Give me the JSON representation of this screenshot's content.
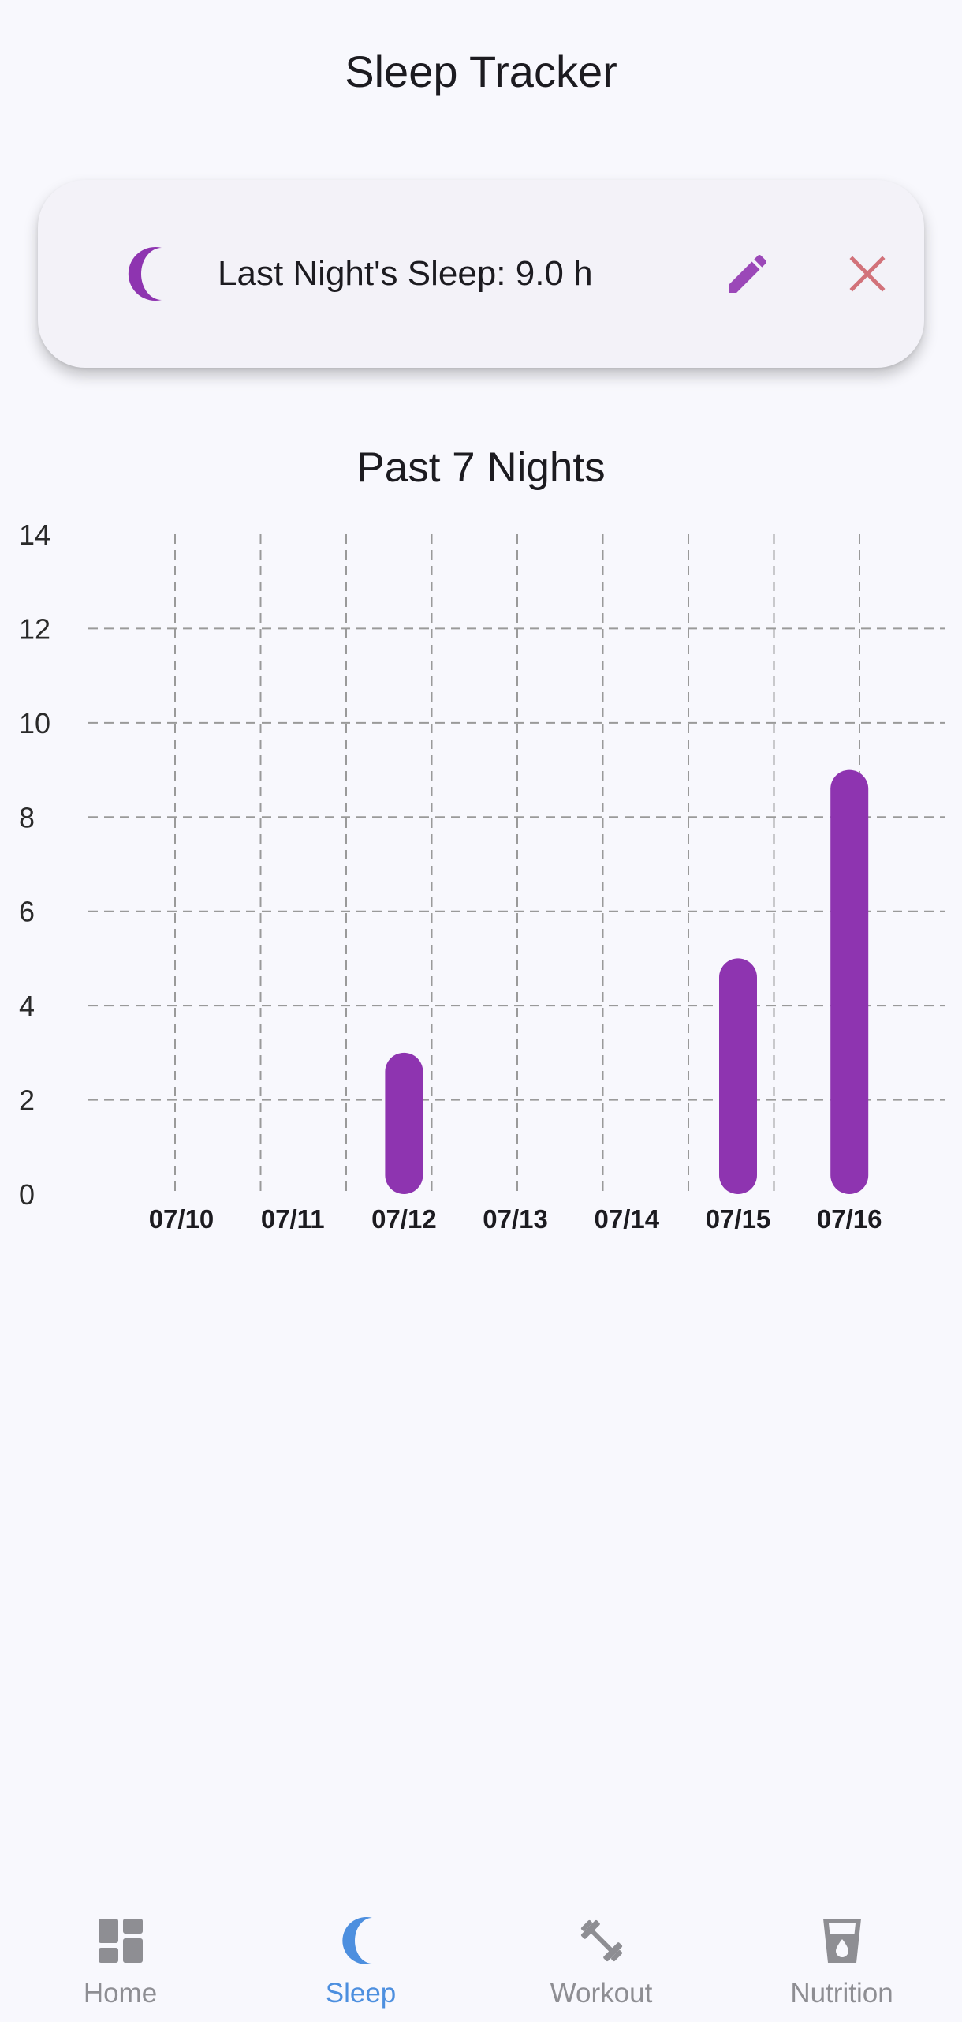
{
  "app": {
    "title": "Sleep Tracker"
  },
  "card": {
    "label": "Last Night's Sleep:",
    "value": "9.0 h",
    "moon_icon": "moon-icon",
    "edit_icon": "pencil-icon",
    "close_icon": "close-icon"
  },
  "chart_data": {
    "type": "bar",
    "title": "Past 7 Nights",
    "categories": [
      "07/10",
      "07/11",
      "07/12",
      "07/13",
      "07/14",
      "07/15",
      "07/16"
    ],
    "values": [
      0,
      0,
      3,
      0,
      0,
      5,
      9
    ],
    "ylim": [
      0,
      14
    ],
    "yticks": [
      0,
      2,
      4,
      6,
      8,
      10,
      12,
      14
    ],
    "xlabel": "",
    "ylabel": "",
    "grid": true,
    "grid_style": "dashed",
    "bar_color": "#8e34b0"
  },
  "nav": {
    "items": [
      {
        "id": "home",
        "label": "Home",
        "icon": "dashboard-icon"
      },
      {
        "id": "sleep",
        "label": "Sleep",
        "icon": "moon-icon",
        "active": true
      },
      {
        "id": "workout",
        "label": "Workout",
        "icon": "dumbbell-icon"
      },
      {
        "id": "nutrition",
        "label": "Nutrition",
        "icon": "glass-water-icon"
      }
    ]
  },
  "colors": {
    "accent_purple": "#8e34b0",
    "edit_purple": "#9b48b8",
    "close_red": "#d2727a",
    "nav_active": "#4d8fdf",
    "nav_inactive": "#8e8e93",
    "background": "#f8f8fd"
  }
}
